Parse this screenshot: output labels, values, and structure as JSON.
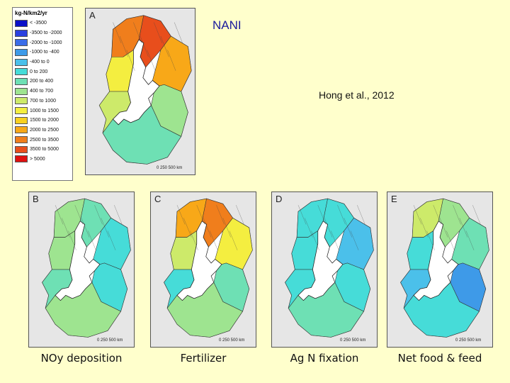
{
  "title": "NANI",
  "citation": "Hong et al., 2012",
  "legend": {
    "title": "kg-N/km2/yr",
    "items": [
      {
        "label": "< -3500",
        "color": "#0a10c8"
      },
      {
        "label": "-3500 to -2000",
        "color": "#2a40e0"
      },
      {
        "label": "-2000 to -1000",
        "color": "#3a6ce8"
      },
      {
        "label": "-1000 to -400",
        "color": "#3e9ae8"
      },
      {
        "label": "-400 to 0",
        "color": "#4bc0ea"
      },
      {
        "label": "0 to 200",
        "color": "#46dcd8"
      },
      {
        "label": "200 to 400",
        "color": "#6ee0b4"
      },
      {
        "label": "400 to 700",
        "color": "#9ee490"
      },
      {
        "label": "700 to 1000",
        "color": "#cdea6a"
      },
      {
        "label": "1000 to 1500",
        "color": "#f4ee40"
      },
      {
        "label": "1500 to 2000",
        "color": "#f8d020"
      },
      {
        "label": "2000 to 2500",
        "color": "#f8a818"
      },
      {
        "label": "2500 to 3500",
        "color": "#f07e1c"
      },
      {
        "label": "3500 to 5000",
        "color": "#e84e1c"
      },
      {
        "label": "> 5000",
        "color": "#e01010"
      }
    ]
  },
  "scalebar": {
    "labels": "0   250   500 km"
  },
  "panels": [
    {
      "letter": "A",
      "caption": "",
      "palette": [
        "#f07e1c",
        "#e84e1c",
        "#f8a818",
        "#f4ee40",
        "#cdea6a",
        "#9ee490",
        "#6ee0b4"
      ]
    },
    {
      "letter": "B",
      "caption": "NOy deposition",
      "palette": [
        "#9ee490",
        "#6ee0b4",
        "#46dcd8",
        "#9ee490",
        "#6ee0b4",
        "#46dcd8",
        "#9ee490"
      ]
    },
    {
      "letter": "C",
      "caption": "Fertilizer",
      "palette": [
        "#f8a818",
        "#f07e1c",
        "#f4ee40",
        "#cdea6a",
        "#46dcd8",
        "#6ee0b4",
        "#9ee490"
      ]
    },
    {
      "letter": "D",
      "caption": "Ag N fixation",
      "palette": [
        "#46dcd8",
        "#46dcd8",
        "#4bc0ea",
        "#46dcd8",
        "#46dcd8",
        "#46dcd8",
        "#6ee0b4"
      ]
    },
    {
      "letter": "E",
      "caption": "Net food & feed",
      "palette": [
        "#cdea6a",
        "#9ee490",
        "#6ee0b4",
        "#46dcd8",
        "#4bc0ea",
        "#3e9ae8",
        "#46dcd8"
      ]
    }
  ]
}
